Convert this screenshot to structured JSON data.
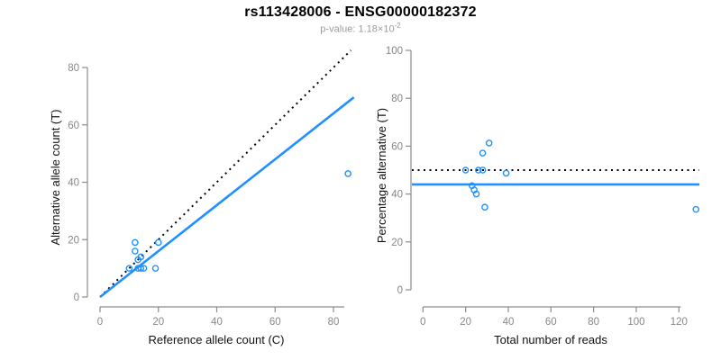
{
  "header": {
    "title": "rs113428006 - ENSG00000182372",
    "pvalue_label": "p-value: 1.18×10",
    "pvalue_exponent": "-2"
  },
  "colors": {
    "accent_blue": "#1E90FF",
    "dotted_black": "#000000",
    "axis_line_gray": "#8c8c8c",
    "tick_label_gray": "#878787",
    "axis_label_black": "#111111",
    "subtitle_gray": "#9a9a9a"
  },
  "chart_data": [
    {
      "type": "scatter",
      "panel": "left",
      "title": "",
      "xlabel": "Reference allele count (C)",
      "ylabel": "Alternative allele count (T)",
      "xlim": [
        0,
        87
      ],
      "ylim": [
        0,
        87
      ],
      "xticks": [
        0,
        20,
        40,
        60,
        80
      ],
      "yticks": [
        0,
        20,
        40,
        60,
        80
      ],
      "grid": false,
      "legend": "none",
      "points": [
        [
          12,
          19
        ],
        [
          12,
          16
        ],
        [
          14,
          14
        ],
        [
          13,
          13
        ],
        [
          10,
          10
        ],
        [
          20,
          19
        ],
        [
          13,
          10
        ],
        [
          14,
          10
        ],
        [
          15,
          10
        ],
        [
          19,
          10
        ],
        [
          85,
          43
        ]
      ],
      "lines": [
        {
          "name": "identity-line",
          "style": "dotted",
          "color": "#000000",
          "from": [
            0,
            0
          ],
          "to": [
            86,
            86
          ]
        },
        {
          "name": "fit-line",
          "style": "solid",
          "color": "#1E90FF",
          "from": [
            0,
            0
          ],
          "to": [
            87,
            69.6
          ]
        }
      ]
    },
    {
      "type": "scatter",
      "panel": "right",
      "title": "",
      "xlabel": "Total number of reads",
      "ylabel": "Percentage alternative (T)",
      "xlim": [
        0,
        129
      ],
      "ylim": [
        0,
        100
      ],
      "xticks": [
        0,
        20,
        40,
        60,
        80,
        100,
        120
      ],
      "yticks": [
        0,
        20,
        40,
        60,
        80,
        100
      ],
      "grid": false,
      "legend": "none",
      "points": [
        [
          31,
          61.3
        ],
        [
          28,
          57.1
        ],
        [
          28,
          50
        ],
        [
          26,
          50
        ],
        [
          20,
          50
        ],
        [
          39,
          48.7
        ],
        [
          24,
          41.7
        ],
        [
          23,
          43.5
        ],
        [
          25,
          40
        ],
        [
          29,
          34.5
        ],
        [
          128,
          33.6
        ]
      ],
      "lines": [
        {
          "name": "null-50pct-line",
          "style": "dotted",
          "color": "#000000",
          "y": 50
        },
        {
          "name": "mean-ratio-line",
          "style": "solid",
          "color": "#1E90FF",
          "y": 44
        }
      ]
    }
  ]
}
